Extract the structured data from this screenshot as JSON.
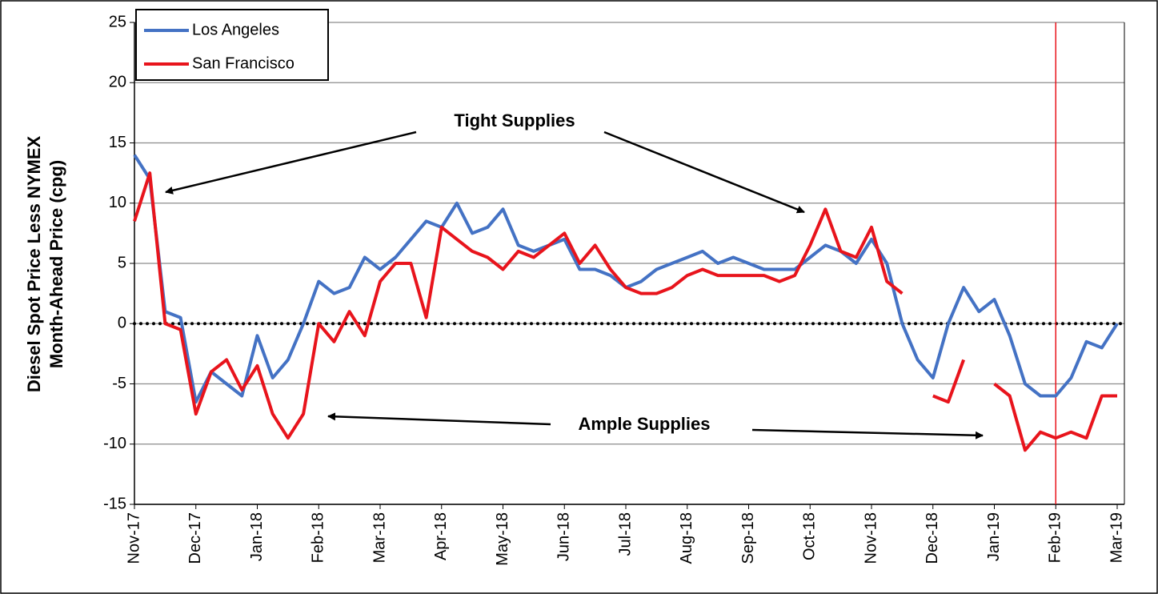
{
  "chart_data": {
    "type": "line",
    "y_axis_label": [
      "Diesel Spot Price Less NYMEX",
      "Month-Ahead Price (cpg)"
    ],
    "annotations": [
      "Tight Supplies",
      "Ample Supplies"
    ],
    "categories": [
      "Nov-17",
      null,
      null,
      null,
      "Dec-17",
      null,
      null,
      null,
      "Jan-18",
      null,
      null,
      null,
      "Feb-18",
      null,
      null,
      null,
      "Mar-18",
      null,
      null,
      null,
      "Apr-18",
      null,
      null,
      null,
      "May-18",
      null,
      null,
      null,
      "Jun-18",
      null,
      null,
      null,
      "Jul-18",
      null,
      null,
      null,
      "Aug-18",
      null,
      null,
      null,
      "Sep-18",
      null,
      null,
      null,
      "Oct-18",
      null,
      null,
      null,
      "Nov-18",
      null,
      null,
      null,
      "Dec-18",
      null,
      null,
      null,
      "Jan-19",
      null,
      null,
      null,
      "Feb-19",
      null,
      null,
      null,
      "Mar-19"
    ],
    "series": [
      {
        "name": "Los Angeles",
        "color": "#4472c4",
        "values": [
          14,
          12,
          1,
          0.5,
          -6.5,
          -4,
          -5,
          -6,
          -1,
          -4.5,
          -3,
          0,
          3.5,
          2.5,
          3,
          5.5,
          4.5,
          5.5,
          7,
          8.5,
          8,
          10,
          7.5,
          8,
          9.5,
          6.5,
          6,
          6.5,
          7,
          4.5,
          4.5,
          4,
          3,
          3.5,
          4.5,
          5,
          5.5,
          6,
          5,
          5.5,
          5,
          4.5,
          4.5,
          4.5,
          5.5,
          6.5,
          6,
          5,
          7,
          5,
          0,
          -3,
          -4.5,
          0,
          3,
          1,
          2,
          -1,
          -5,
          -6,
          -6,
          -4.5,
          -1.5,
          -2,
          0
        ]
      },
      {
        "name": "San Francisco",
        "color": "#e8141c",
        "values": [
          8.5,
          12.5,
          0,
          -0.5,
          -7.5,
          -4,
          -3,
          -5.5,
          -3.5,
          -7.5,
          -9.5,
          -7.5,
          0,
          -1.5,
          1,
          -1,
          3.5,
          5,
          5,
          0.5,
          8,
          7,
          6,
          5.5,
          4.5,
          6,
          5.5,
          6.5,
          7.5,
          5,
          6.5,
          4.5,
          3,
          2.5,
          2.5,
          3,
          4,
          4.5,
          4,
          4,
          4,
          4,
          3.5,
          4,
          6.5,
          9.5,
          6,
          5.5,
          8,
          3.5,
          2.5,
          null,
          -6,
          -6.5,
          -3,
          null,
          -5,
          -6,
          -10.5,
          -9,
          -9.5,
          -9,
          -9.5,
          -6,
          -6
        ]
      }
    ],
    "ylim": [
      -15,
      25
    ],
    "yticks": [
      -15,
      -10,
      -5,
      0,
      5,
      10,
      15,
      20,
      25
    ],
    "grid": true,
    "zero_line": 0,
    "reference_line": {
      "category": "Feb-19",
      "color": "#e8141c"
    },
    "legend": "top-left"
  }
}
